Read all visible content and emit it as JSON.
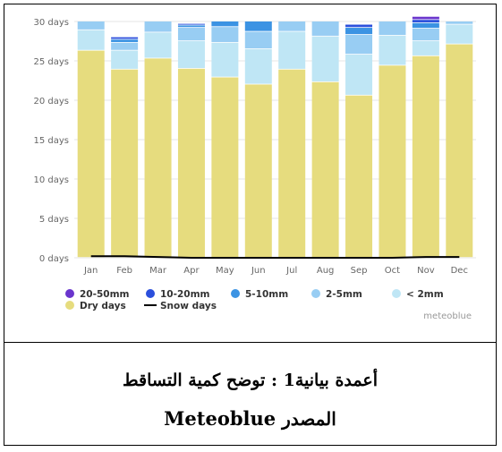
{
  "chart_data": {
    "type": "bar",
    "stacked": true,
    "title": "",
    "xlabel": "",
    "ylabel": "",
    "ylim": [
      0,
      30
    ],
    "y_ticks": [
      0,
      5,
      10,
      15,
      20,
      25,
      30
    ],
    "y_tick_labels": [
      "0 days",
      "5 days",
      "10 days",
      "15 days",
      "20 days",
      "25 days",
      "30 days"
    ],
    "grid": true,
    "legend_position": "bottom-left",
    "categories": [
      "Jan",
      "Feb",
      "Mar",
      "Apr",
      "May",
      "Jun",
      "Jul",
      "Aug",
      "Sep",
      "Oct",
      "Nov",
      "Dec"
    ],
    "series": [
      {
        "name": "Dry days",
        "color": "#e6dc7e",
        "values": [
          26.3,
          23.9,
          25.3,
          24.0,
          22.9,
          22.0,
          23.9,
          22.3,
          20.6,
          24.4,
          25.6,
          27.1
        ]
      },
      {
        "name": "< 2mm",
        "color": "#bfe6f5",
        "values": [
          2.6,
          2.4,
          3.3,
          3.5,
          4.4,
          4.5,
          4.8,
          5.8,
          5.2,
          3.8,
          1.9,
          2.5
        ]
      },
      {
        "name": "2-5mm",
        "color": "#98cdf3",
        "values": [
          1.1,
          1.0,
          1.4,
          1.7,
          2.0,
          2.2,
          1.3,
          1.9,
          2.5,
          1.8,
          1.6,
          0.4
        ]
      },
      {
        "name": "5-10mm",
        "color": "#3b93e3",
        "values": [
          0.0,
          0.4,
          0.0,
          0.3,
          0.7,
          1.3,
          0.0,
          0.0,
          0.9,
          0.0,
          0.7,
          0.0
        ]
      },
      {
        "name": "10-20mm",
        "color": "#2b4fdc",
        "values": [
          0.0,
          0.3,
          0.0,
          0.2,
          0.0,
          0.0,
          0.0,
          0.0,
          0.4,
          0.0,
          0.4,
          0.0
        ]
      },
      {
        "name": "20-50mm",
        "color": "#6a35cd",
        "values": [
          0.0,
          0.0,
          0.0,
          0.0,
          0.0,
          0.0,
          0.0,
          0.0,
          0.0,
          0.0,
          0.4,
          0.0
        ]
      }
    ],
    "snow_days": {
      "name": "Snow days",
      "color": "#000000",
      "values": [
        0.2,
        0.2,
        0.1,
        0.0,
        0.0,
        0.0,
        0.0,
        0.0,
        0.0,
        0.0,
        0.1,
        0.1
      ]
    },
    "legend_order": [
      "20-50mm",
      "10-20mm",
      "5-10mm",
      "2-5mm",
      "< 2mm",
      "Dry days",
      "Snow days"
    ],
    "credit": "meteoblue"
  },
  "caption": {
    "line1": "أعمدة بيانية1 : توضح كمية التساقط",
    "line2_arabic": "المصدر",
    "line2_latin": "Meteoblue"
  }
}
